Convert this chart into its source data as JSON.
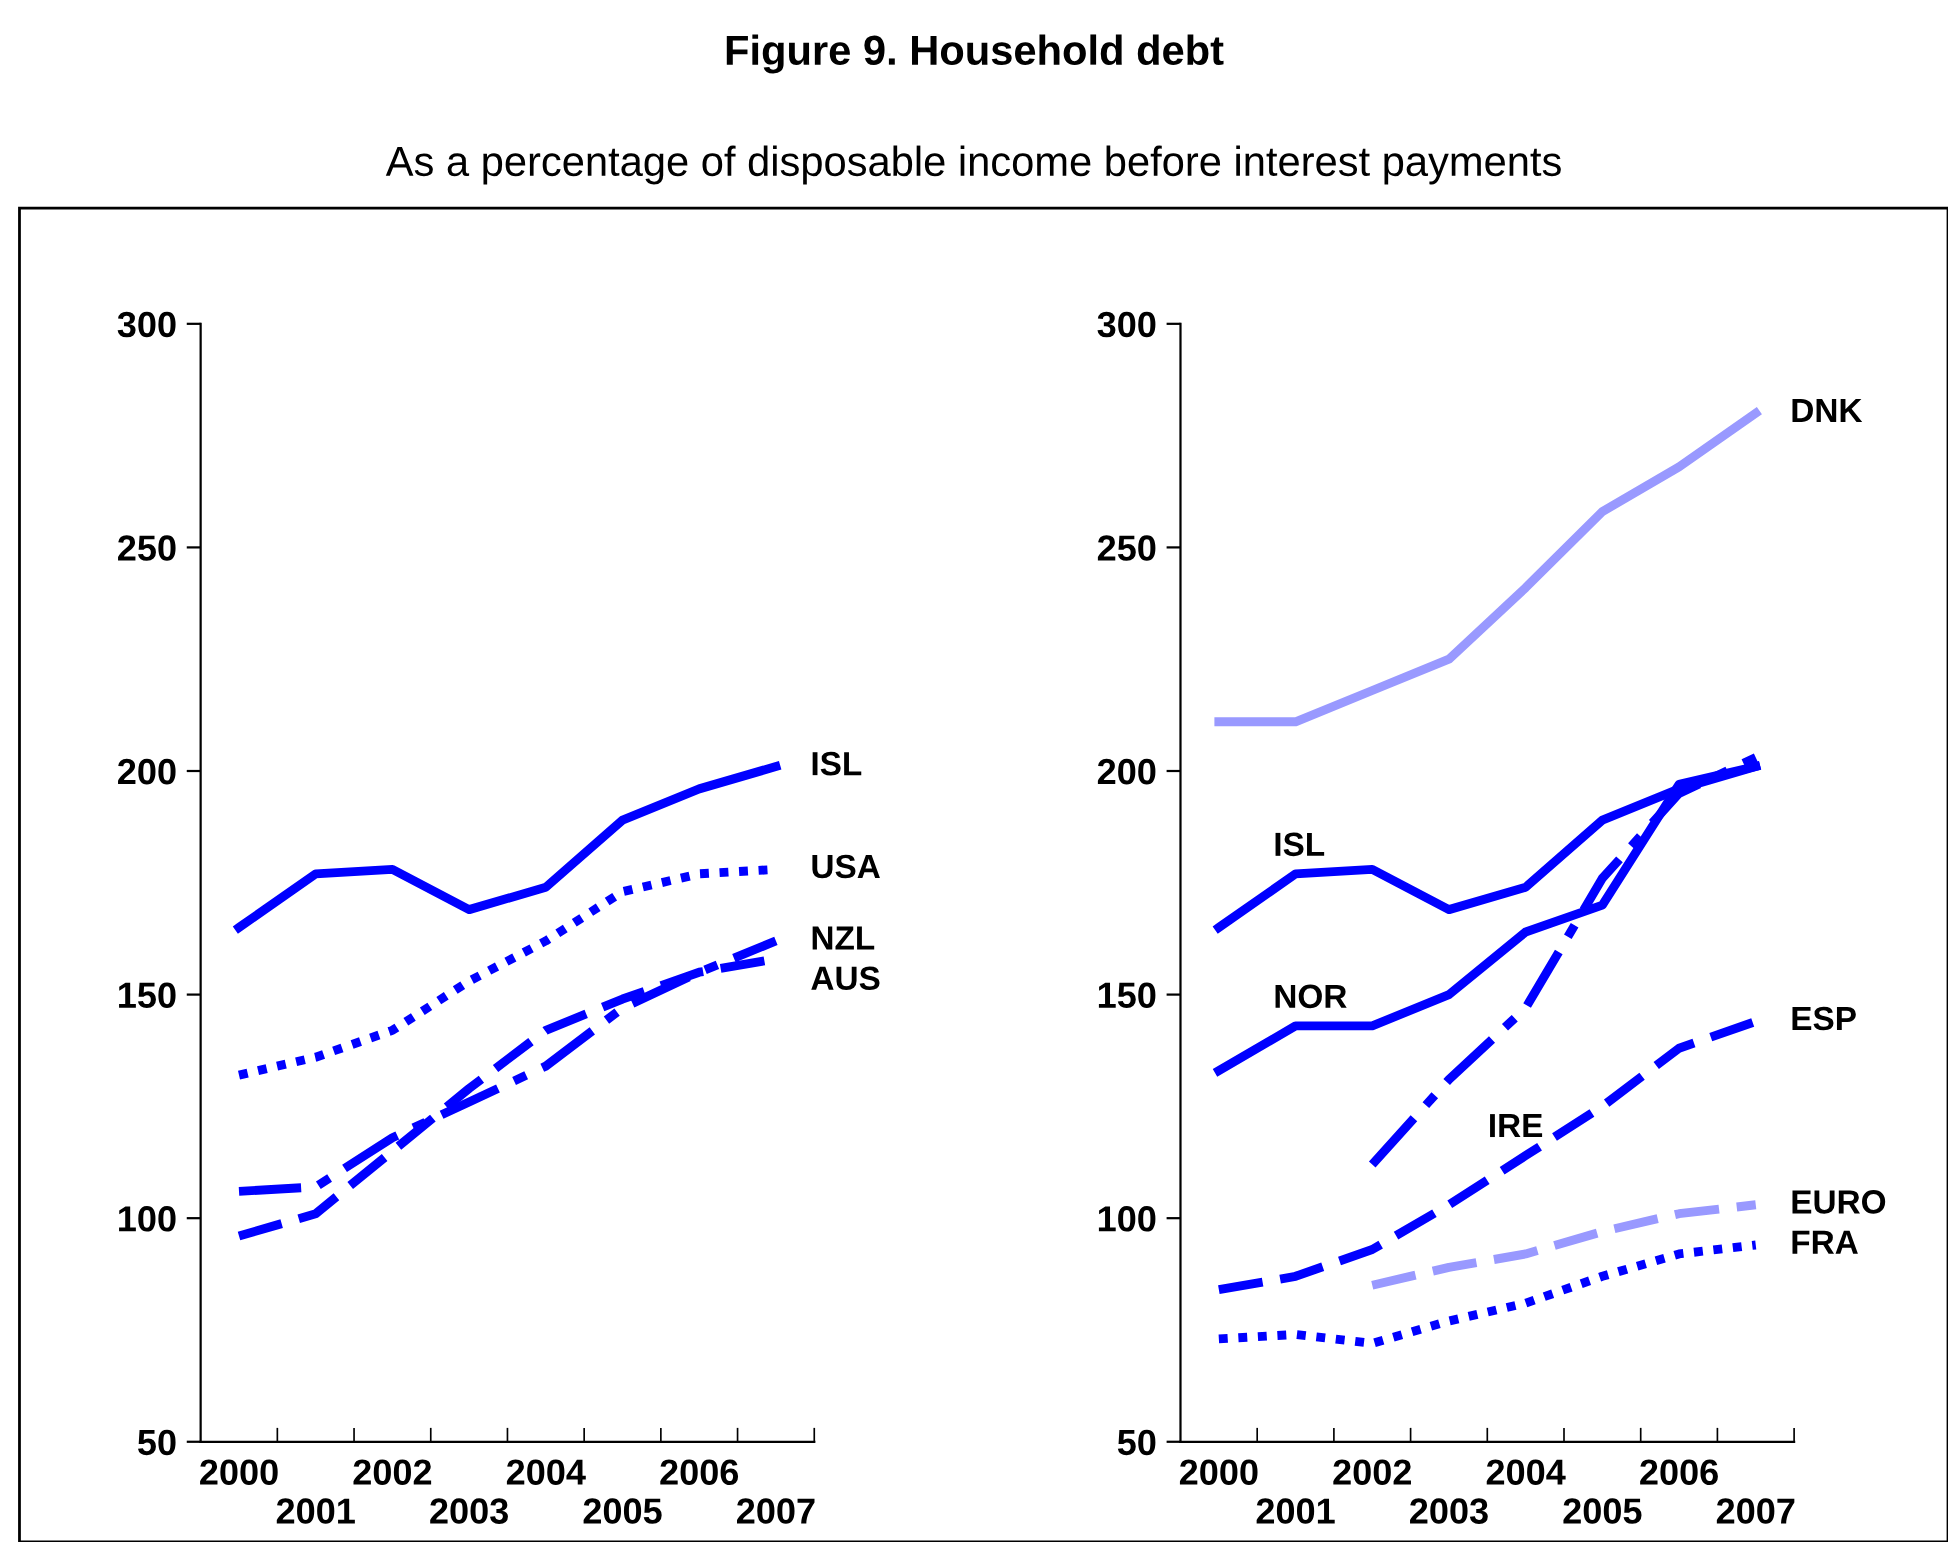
{
  "chart_data": [
    {
      "type": "line",
      "title": "Figure 9. Household debt",
      "subtitle": "As a percentage of disposable income before interest payments",
      "categories": [
        "2000",
        "2001",
        "2002",
        "2003",
        "2004",
        "2005",
        "2006",
        "2007"
      ],
      "ylim": [
        50,
        300
      ],
      "yticks": [
        50,
        100,
        150,
        200,
        250,
        300
      ],
      "grid": false,
      "legend": false,
      "marker": "none",
      "series": [
        {
          "color": "#0000ff",
          "line_style": "solid",
          "values": [
            165,
            177,
            178,
            169,
            174,
            189,
            196,
            201
          ]
        },
        {
          "color": "#0000ff",
          "line_style": "dotted",
          "values": [
            132,
            136,
            142,
            153,
            162,
            173,
            177,
            178
          ]
        },
        {
          "color": "#0000ff",
          "line_style": "dashdot",
          "values": [
            106,
            107,
            118,
            126,
            134,
            147,
            155,
            162
          ]
        },
        {
          "color": "#0000ff",
          "line_style": "dashed",
          "values": [
            96,
            101,
            115,
            129,
            142,
            149,
            155,
            158
          ]
        }
      ],
      "annotations": [
        {
          "text": "ISL",
          "x": "2007",
          "y": 201
        },
        {
          "text": "USA",
          "x": "2007",
          "y": 178
        },
        {
          "text": "NZL",
          "x": "2007",
          "y": 162
        },
        {
          "text": "AUS",
          "x": "2007",
          "y": 158
        }
      ]
    },
    {
      "type": "line",
      "categories": [
        "2000",
        "2001",
        "2002",
        "2003",
        "2004",
        "2005",
        "2006",
        "2007"
      ],
      "ylim": [
        50,
        300
      ],
      "yticks": [
        50,
        100,
        150,
        200,
        250,
        300
      ],
      "grid": false,
      "legend": false,
      "marker": "none",
      "series": [
        {
          "color": "#9999ff",
          "line_style": "solid",
          "values": [
            211,
            211,
            218,
            225,
            241,
            258,
            268,
            280
          ]
        },
        {
          "color": "#0000ff",
          "line_style": "solid",
          "values": [
            165,
            177,
            178,
            169,
            174,
            189,
            196,
            201
          ]
        },
        {
          "color": "#0000ff",
          "line_style": "solid",
          "values": [
            133,
            143,
            143,
            150,
            164,
            170,
            197,
            201
          ]
        },
        {
          "color": "#0000ff",
          "line_style": "dashdot",
          "values": [
            null,
            null,
            112,
            131,
            147,
            176,
            195,
            203
          ]
        },
        {
          "color": "#0000ff",
          "line_style": "dashed",
          "values": [
            84,
            87,
            93,
            103,
            114,
            125,
            138,
            144
          ]
        },
        {
          "color": "#9999ff",
          "line_style": "dashed",
          "values": [
            null,
            null,
            85,
            89,
            92,
            97,
            101,
            103
          ]
        },
        {
          "color": "#0000ff",
          "line_style": "dotted",
          "values": [
            73,
            74,
            72,
            77,
            81,
            87,
            92,
            94
          ]
        }
      ],
      "annotations": [
        {
          "text": "DNK",
          "x": "2007",
          "y": 280
        },
        {
          "text": "ISL",
          "x": "2001",
          "y": 177
        },
        {
          "text": "NOR",
          "x": "2001",
          "y": 143
        },
        {
          "text": "IRE",
          "x": "2003",
          "y": 131
        },
        {
          "text": "ESP",
          "x": "2007",
          "y": 144
        },
        {
          "text": "EURO",
          "x": "2007",
          "y": 103
        },
        {
          "text": "FRA",
          "x": "2007",
          "y": 94
        }
      ]
    }
  ]
}
